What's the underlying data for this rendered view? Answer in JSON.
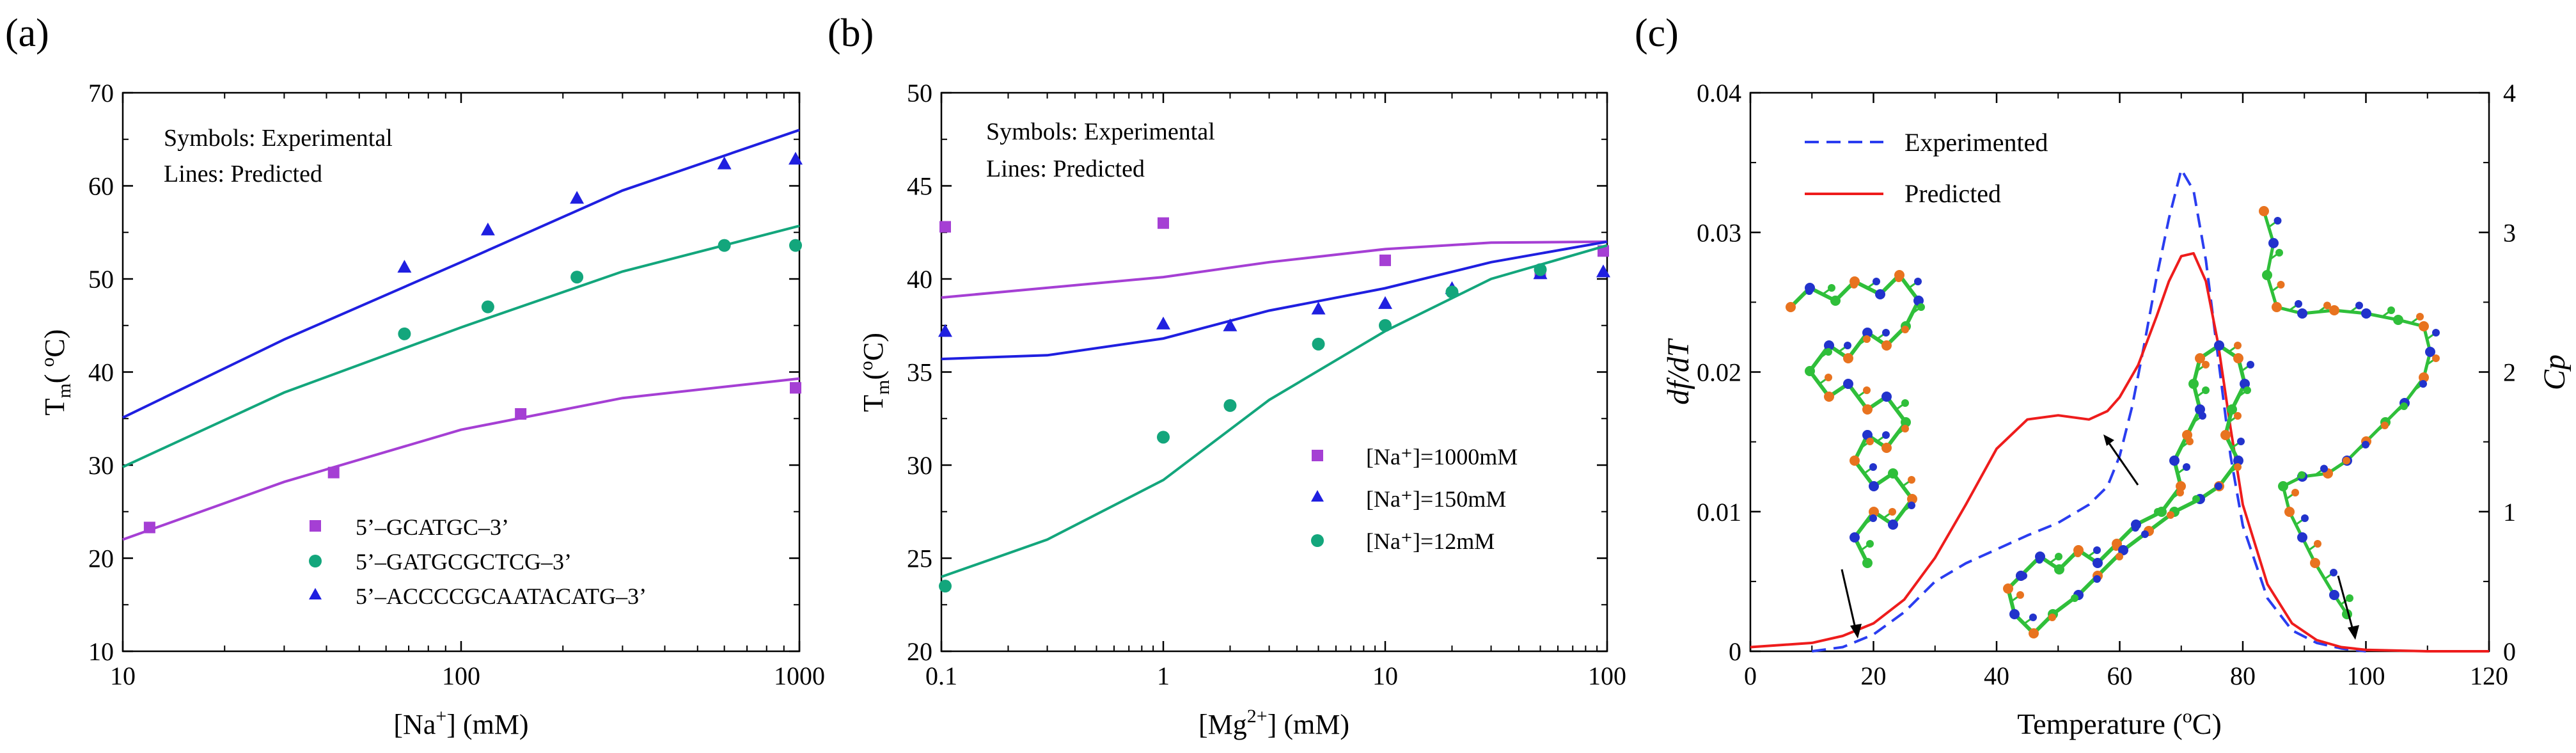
{
  "colors": {
    "purple": "#a53fd4",
    "blue": "#1f1fe0",
    "green": "#13a67c",
    "exp_blue": "#2a3df0",
    "pred_red": "#ee1c1c"
  },
  "chart_data": [
    {
      "panel_label": "(a)",
      "type": "line",
      "xscale": "log",
      "xlim": [
        10,
        1000
      ],
      "ylim": [
        10,
        70
      ],
      "xticks": [
        10,
        100,
        1000
      ],
      "xtick_labels": [
        "10",
        "100",
        "1000"
      ],
      "yticks": [
        10,
        20,
        30,
        40,
        50,
        60,
        70
      ],
      "ytick_labels": [
        "10",
        "20",
        "30",
        "40",
        "50",
        "60",
        "70"
      ],
      "xlabel_pre": "[Na",
      "xlabel_sup": "+",
      "xlabel_post": "] (mM)",
      "ylabel_main": "T",
      "ylabel_sub": "m",
      "ylabel_paren": "( ",
      "ylabel_sup": "o",
      "ylabel_unit": "C)",
      "notes": [
        "Symbols: Experimental",
        "Lines: Predicted"
      ],
      "series": [
        {
          "name": "5’–GCATGC–3’",
          "color_key": "purple",
          "marker": "square",
          "line_x": [
            10,
            30,
            100,
            300,
            1000
          ],
          "line_y": [
            22,
            28.2,
            33.8,
            37.2,
            39.3
          ],
          "points_x": [
            12,
            42,
            150,
            1000
          ],
          "points_y": [
            23.3,
            29.2,
            35.5,
            38.3
          ]
        },
        {
          "name": "5’–GATGCGCTCG–3’",
          "color_key": "green",
          "marker": "circle",
          "line_x": [
            10,
            30,
            100,
            300,
            1000
          ],
          "line_y": [
            29.8,
            37.8,
            44.8,
            50.8,
            55.7
          ],
          "points_x": [
            68,
            120,
            220,
            600,
            1000
          ],
          "points_y": [
            44.1,
            47,
            50.2,
            53.6,
            53.6
          ]
        },
        {
          "name": "5’–ACCCCGCAATACATG–3’",
          "color_key": "blue",
          "marker": "triangle",
          "line_x": [
            10,
            30,
            100,
            300,
            1000
          ],
          "line_y": [
            35.1,
            43.5,
            51.8,
            59.5,
            66
          ],
          "points_x": [
            68,
            120,
            220,
            600,
            1000
          ],
          "points_y": [
            51.3,
            55.3,
            58.7,
            62.4,
            62.9
          ]
        }
      ]
    },
    {
      "panel_label": "(b)",
      "type": "line",
      "xscale": "log",
      "xlim": [
        0.1,
        100
      ],
      "ylim": [
        20,
        50
      ],
      "xticks": [
        0.1,
        1,
        10,
        100
      ],
      "xtick_labels": [
        "0.1",
        "1",
        "10",
        "100"
      ],
      "yticks": [
        20,
        25,
        30,
        35,
        40,
        45,
        50
      ],
      "ytick_labels": [
        "20",
        "25",
        "30",
        "35",
        "40",
        "45",
        "50"
      ],
      "xlabel_pre": "[Mg",
      "xlabel_sup": "2+",
      "xlabel_post": "] (mM)",
      "ylabel_main": "T",
      "ylabel_sub": "m",
      "ylabel_paren": "(",
      "ylabel_sup": "o",
      "ylabel_unit": "C)",
      "notes": [
        "Symbols: Experimental",
        "Lines: Predicted"
      ],
      "series": [
        {
          "name": "[Na⁺]=1000mM",
          "color_key": "purple",
          "marker": "square",
          "line_x": [
            0.1,
            1,
            3,
            10,
            30,
            100
          ],
          "line_y": [
            39,
            40.1,
            40.9,
            41.6,
            41.95,
            42
          ],
          "points_x": [
            0.1,
            1,
            10,
            50,
            100
          ],
          "points_y": [
            42.8,
            43,
            41,
            40.3,
            41.5
          ]
        },
        {
          "name": "[Na⁺]=150mM",
          "color_key": "blue",
          "marker": "triangle",
          "line_x": [
            0.1,
            0.3,
            1,
            3,
            10,
            30,
            100
          ],
          "line_y": [
            35.7,
            35.9,
            36.8,
            38.3,
            39.5,
            40.9,
            42
          ],
          "points_x": [
            0.1,
            1,
            2,
            5,
            10,
            20,
            50,
            100
          ],
          "points_y": [
            37.2,
            37.6,
            37.5,
            38.4,
            38.7,
            39.5,
            40.3,
            40.4
          ]
        },
        {
          "name": "[Na⁺]=12mM",
          "color_key": "green",
          "marker": "circle",
          "line_x": [
            0.1,
            0.3,
            1,
            3,
            10,
            30,
            100
          ],
          "line_y": [
            24,
            26,
            29.2,
            33.5,
            37.2,
            40,
            41.8
          ],
          "points_x": [
            0.1,
            1,
            2,
            5,
            10,
            20,
            50
          ],
          "points_y": [
            23.5,
            31.5,
            33.2,
            36.5,
            37.5,
            39.3,
            40.5
          ]
        }
      ]
    },
    {
      "panel_label": "(c)",
      "type": "line",
      "xlim": [
        0,
        120
      ],
      "ylim": [
        0,
        0.04
      ],
      "y2lim": [
        0,
        4
      ],
      "xticks": [
        0,
        20,
        40,
        60,
        80,
        100,
        120
      ],
      "xtick_labels": [
        "0",
        "20",
        "40",
        "60",
        "80",
        "100",
        "120"
      ],
      "yticks": [
        0,
        0.01,
        0.02,
        0.03,
        0.04
      ],
      "ytick_labels": [
        "0",
        "0.01",
        "0.02",
        "0.03",
        "0.04"
      ],
      "y2ticks": [
        0,
        1,
        2,
        3,
        4
      ],
      "y2tick_labels": [
        "0",
        "1",
        "2",
        "3",
        "4"
      ],
      "xlabel_pre": "Temperature (",
      "xlabel_sup": "o",
      "xlabel_post": "C)",
      "ylabel": "df/dT",
      "y2label": "Cp",
      "series": [
        {
          "name": "Experimented",
          "color_key": "exp_blue",
          "dash": true,
          "x": [
            10,
            15,
            20,
            25,
            30,
            35,
            40,
            45,
            50,
            55,
            58,
            60,
            62,
            64,
            66,
            68,
            70,
            72,
            74,
            76,
            78,
            80,
            84,
            88,
            92,
            96,
            100
          ],
          "y": [
            0,
            0.0003,
            0.0012,
            0.0028,
            0.005,
            0.0063,
            0.0073,
            0.0083,
            0.0092,
            0.0105,
            0.0118,
            0.014,
            0.0175,
            0.022,
            0.0268,
            0.031,
            0.0345,
            0.033,
            0.028,
            0.021,
            0.014,
            0.009,
            0.0038,
            0.0015,
            0.0006,
            0.0002,
            0
          ]
        },
        {
          "name": "Predicted",
          "color_key": "pred_red",
          "dash": false,
          "x": [
            0,
            10,
            15,
            20,
            25,
            30,
            35,
            40,
            45,
            50,
            55,
            58,
            60,
            63,
            66,
            68,
            70,
            72,
            74,
            76,
            78,
            80,
            84,
            88,
            92,
            96,
            100,
            110,
            120
          ],
          "y": [
            0.0003,
            0.0006,
            0.0011,
            0.002,
            0.0037,
            0.0067,
            0.0105,
            0.0145,
            0.0166,
            0.0169,
            0.0166,
            0.0172,
            0.0182,
            0.0205,
            0.024,
            0.0265,
            0.0283,
            0.0285,
            0.0265,
            0.022,
            0.016,
            0.0105,
            0.0048,
            0.002,
            0.0008,
            0.0003,
            0.0001,
            0,
            0
          ]
        }
      ]
    }
  ]
}
